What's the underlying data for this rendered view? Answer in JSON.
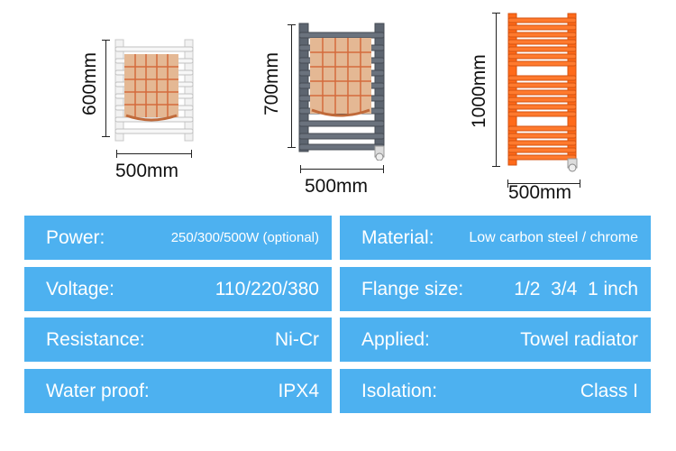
{
  "products": [
    {
      "height_label": "600mm",
      "width_label": "500mm",
      "color": "#f3f3f3"
    },
    {
      "height_label": "700mm",
      "width_label": "500mm",
      "color": "#5d6570"
    },
    {
      "height_label": "1000mm",
      "width_label": "500mm",
      "color": "#ff6a1a"
    }
  ],
  "specs_left": [
    {
      "label": "Power:",
      "value": "250/300/500W (optional)"
    },
    {
      "label": "Voltage:",
      "value": "110/220/380"
    },
    {
      "label": "Resistance:",
      "value": "Ni-Cr"
    },
    {
      "label": "Water proof:",
      "value": "IPX4"
    }
  ],
  "specs_right": [
    {
      "label": "Material:",
      "value": "Low carbon steel / chrome"
    },
    {
      "label": "Flange size:",
      "value": "1/2  3/4  1 inch"
    },
    {
      "label": "Applied:",
      "value": "Towel radiator"
    },
    {
      "label": "Isolation:",
      "value": "Class I"
    }
  ],
  "colors": {
    "cell_bg": "#4db1f0",
    "cell_text": "#ffffff",
    "towel": "#e4b894",
    "towel_grid": "#d46a3c"
  }
}
